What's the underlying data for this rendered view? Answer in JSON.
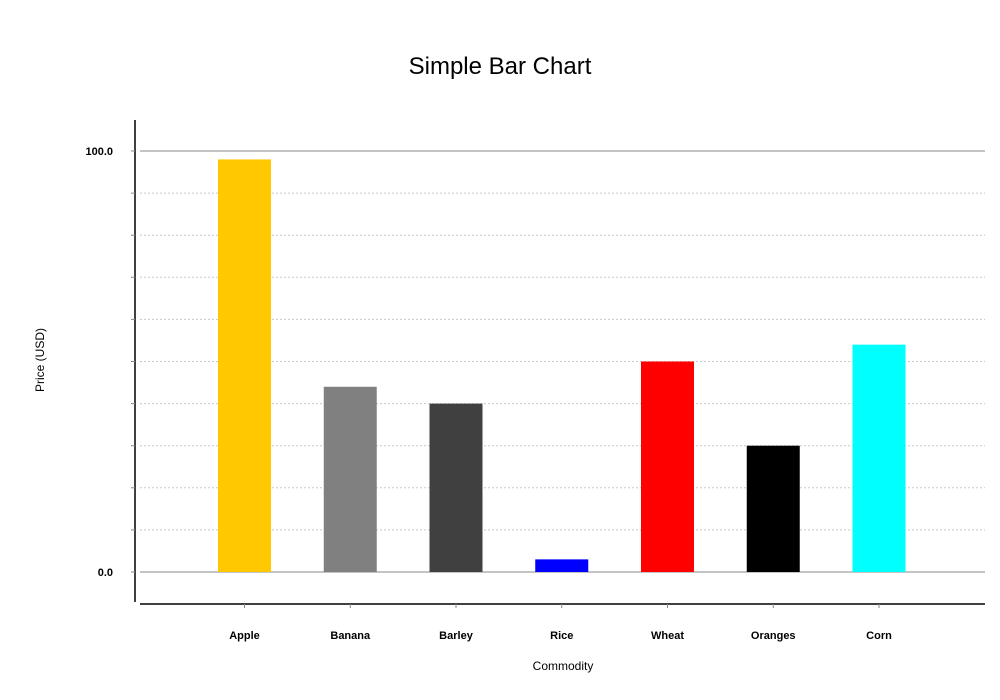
{
  "chart_data": {
    "type": "bar",
    "title": "Simple Bar Chart",
    "xlabel": "Commodity",
    "ylabel": "Price (USD)",
    "categories": [
      "Apple",
      "Banana",
      "Barley",
      "Rice",
      "Wheat",
      "Oranges",
      "Corn"
    ],
    "values": [
      98,
      44,
      40,
      3,
      50,
      30,
      54
    ],
    "colors": [
      "#ffc800",
      "#808080",
      "#404040",
      "#0000ff",
      "#ff0000",
      "#000000",
      "#00ffff"
    ],
    "ylim": [
      0,
      100
    ],
    "y_tick_labels": [
      "0.0",
      "100.0"
    ],
    "y_minor_step": 10,
    "grid": true,
    "legend": "none"
  }
}
